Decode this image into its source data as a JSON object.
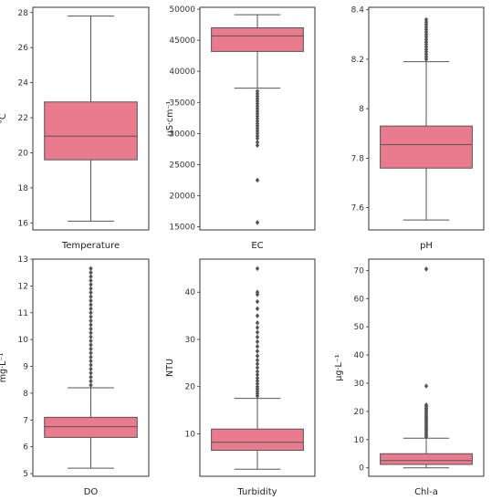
{
  "colors": {
    "box": "#EA7A8D",
    "line": "#555555",
    "frame": "#333333"
  },
  "chart_data": [
    {
      "type": "box",
      "xlabel": "Temperature",
      "ylabel": "°C",
      "ylim": [
        15.6,
        28.3
      ],
      "yticks": [
        16,
        18,
        20,
        22,
        24,
        26,
        28
      ],
      "box": {
        "whisker_low": 16.1,
        "q1": 19.6,
        "median": 20.95,
        "q3": 22.9,
        "whisker_high": 27.8
      },
      "outliers": []
    },
    {
      "type": "box",
      "xlabel": "EC",
      "ylabel": "uS·cm⁻¹",
      "ylim": [
        14500,
        50300
      ],
      "yticks": [
        15000,
        20000,
        25000,
        30000,
        35000,
        40000,
        45000,
        50000
      ],
      "box": {
        "whisker_low": 37300,
        "q1": 43200,
        "median": 45700,
        "q3": 47000,
        "whisker_high": 49100
      },
      "outliers": [
        36800,
        36400,
        36000,
        35600,
        35200,
        34800,
        34400,
        34000,
        33600,
        33200,
        32800,
        32400,
        32000,
        31600,
        31200,
        30800,
        30400,
        30000,
        29600,
        29200,
        28600,
        28100,
        22500,
        15700
      ]
    },
    {
      "type": "box",
      "xlabel": "pH",
      "ylabel": "",
      "ylim": [
        7.51,
        8.41
      ],
      "yticks": [
        7.6,
        7.8,
        8.0,
        8.2,
        8.4
      ],
      "box": {
        "whisker_low": 7.55,
        "q1": 7.76,
        "median": 7.855,
        "q3": 7.93,
        "whisker_high": 8.19
      },
      "outliers": [
        8.2,
        8.21,
        8.22,
        8.23,
        8.24,
        8.25,
        8.26,
        8.27,
        8.28,
        8.29,
        8.3,
        8.31,
        8.32,
        8.33,
        8.34,
        8.35,
        8.36
      ]
    },
    {
      "type": "box",
      "xlabel": "DO",
      "ylabel": "mg·L⁻¹",
      "ylim": [
        4.9,
        13.0
      ],
      "yticks": [
        5,
        6,
        7,
        8,
        9,
        10,
        11,
        12,
        13
      ],
      "box": {
        "whisker_low": 5.2,
        "q1": 6.35,
        "median": 6.75,
        "q3": 7.1,
        "whisker_high": 8.2
      },
      "outliers": [
        8.3,
        8.45,
        8.6,
        8.75,
        8.9,
        9.05,
        9.2,
        9.35,
        9.5,
        9.65,
        9.8,
        9.95,
        10.1,
        10.25,
        10.4,
        10.55,
        10.7,
        10.85,
        11.0,
        11.15,
        11.3,
        11.45,
        11.6,
        11.75,
        11.9,
        12.05,
        12.2,
        12.35,
        12.5,
        12.65
      ]
    },
    {
      "type": "box",
      "xlabel": "Turbidity",
      "ylabel": "NTU",
      "ylim": [
        1.0,
        47.0
      ],
      "yticks": [
        10,
        20,
        30,
        40
      ],
      "box": {
        "whisker_low": 2.5,
        "q1": 6.5,
        "median": 8.2,
        "q3": 11.0,
        "whisker_high": 17.5
      },
      "outliers": [
        18.0,
        18.5,
        19.0,
        19.5,
        20.0,
        20.6,
        21.2,
        21.8,
        22.5,
        23.2,
        24.0,
        24.8,
        25.6,
        26.5,
        27.5,
        28.5,
        29.5,
        30.5,
        31.5,
        32.5,
        33.5,
        35.0,
        36.5,
        38.0,
        39.5,
        40.0,
        45.0
      ]
    },
    {
      "type": "box",
      "xlabel": "Chl-a",
      "ylabel": "μg·L⁻¹",
      "ylim": [
        -3.0,
        74.0
      ],
      "yticks": [
        0,
        10,
        20,
        30,
        40,
        50,
        60,
        70
      ],
      "box": {
        "whisker_low": 0.0,
        "q1": 1.2,
        "median": 2.6,
        "q3": 5.0,
        "whisker_high": 10.5
      },
      "outliers": [
        11.0,
        11.6,
        12.2,
        12.8,
        13.4,
        14.0,
        14.6,
        15.2,
        15.8,
        16.4,
        17.0,
        17.6,
        18.2,
        18.8,
        19.4,
        20.0,
        20.6,
        21.2,
        21.8,
        22.3,
        29.0,
        70.5
      ]
    }
  ]
}
